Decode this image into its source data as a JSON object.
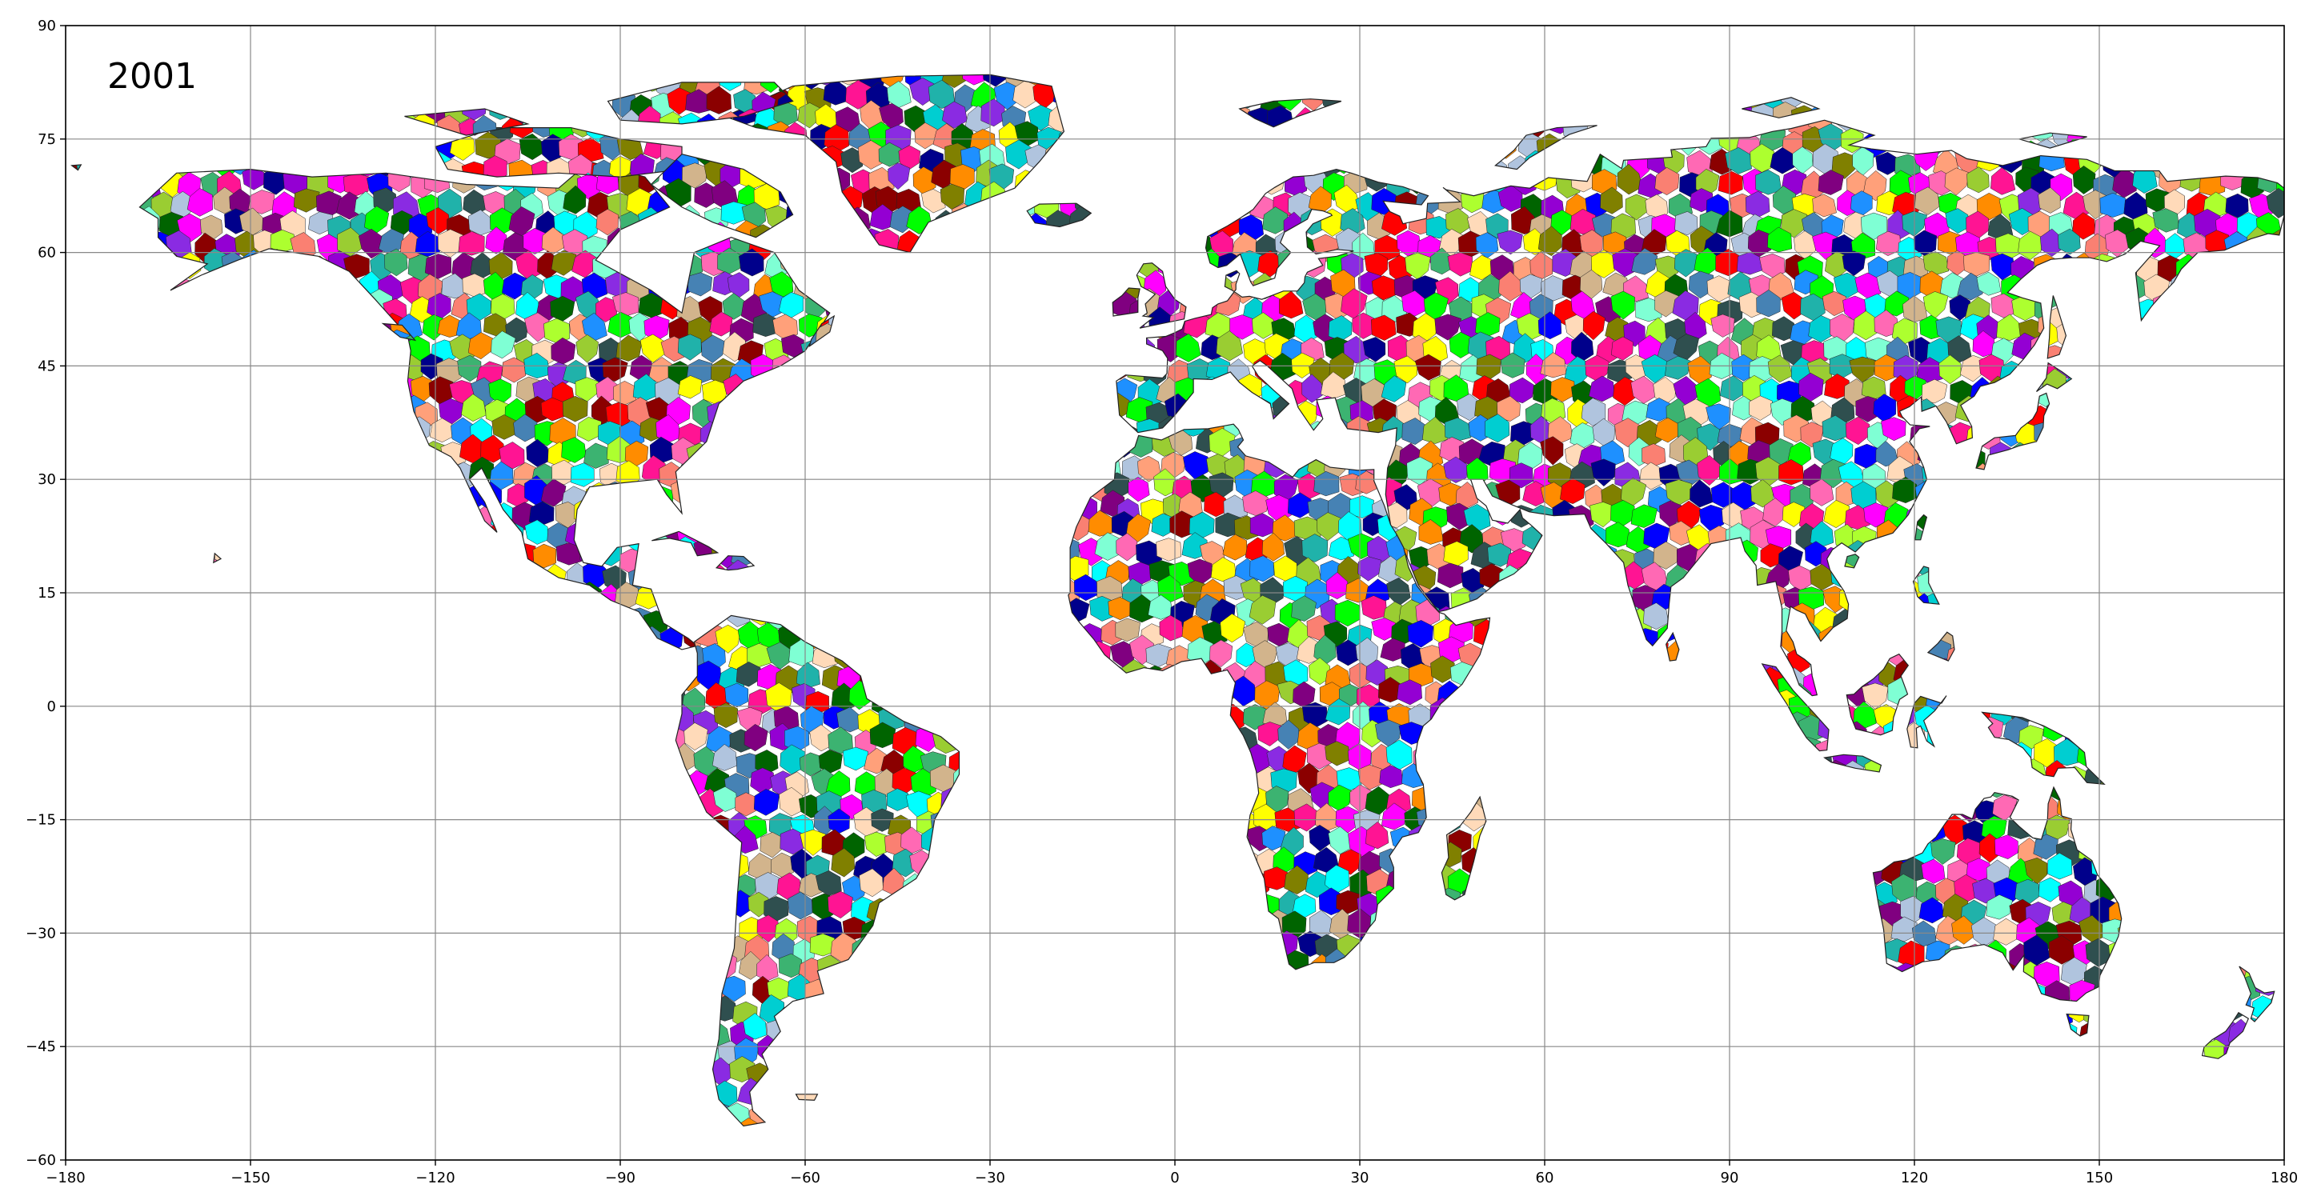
{
  "year_label": "2001",
  "map": {
    "projection": "equirectangular",
    "lon_range": [
      -180,
      180
    ],
    "lat_range": [
      -60,
      90
    ],
    "grid": true,
    "x_ticks": [
      -180,
      -150,
      -120,
      -90,
      -60,
      -30,
      0,
      30,
      60,
      90,
      120,
      150,
      180
    ],
    "y_ticks": [
      90,
      75,
      60,
      45,
      30,
      15,
      0,
      -15,
      -30,
      -45,
      -60
    ],
    "x_tick_labels": [
      "−180",
      "−150",
      "−120",
      "−90",
      "−60",
      "−30",
      "0",
      "30",
      "60",
      "90",
      "120",
      "150",
      "180"
    ],
    "y_tick_labels": [
      "90",
      "75",
      "60",
      "45",
      "30",
      "15",
      "0",
      "−15",
      "−30",
      "−45",
      "−60"
    ],
    "regions_fill": "multicolor basin polygons",
    "palette": [
      "#ff00ff",
      "#00ff00",
      "#0000ff",
      "#ff0000",
      "#00ffff",
      "#ffff00",
      "#8b0000",
      "#006400",
      "#00008b",
      "#ff8c00",
      "#9400d3",
      "#2f4f4f",
      "#ff69b4",
      "#7fffd4",
      "#1e90ff",
      "#adff2f",
      "#fa8072",
      "#4682b4",
      "#d2b48c",
      "#9acd32",
      "#ff1493",
      "#00ced1",
      "#8a2be2",
      "#ffa07a",
      "#3cb371",
      "#b0c4de",
      "#ffdab9",
      "#808000",
      "#800080",
      "#20b2aa"
    ]
  }
}
